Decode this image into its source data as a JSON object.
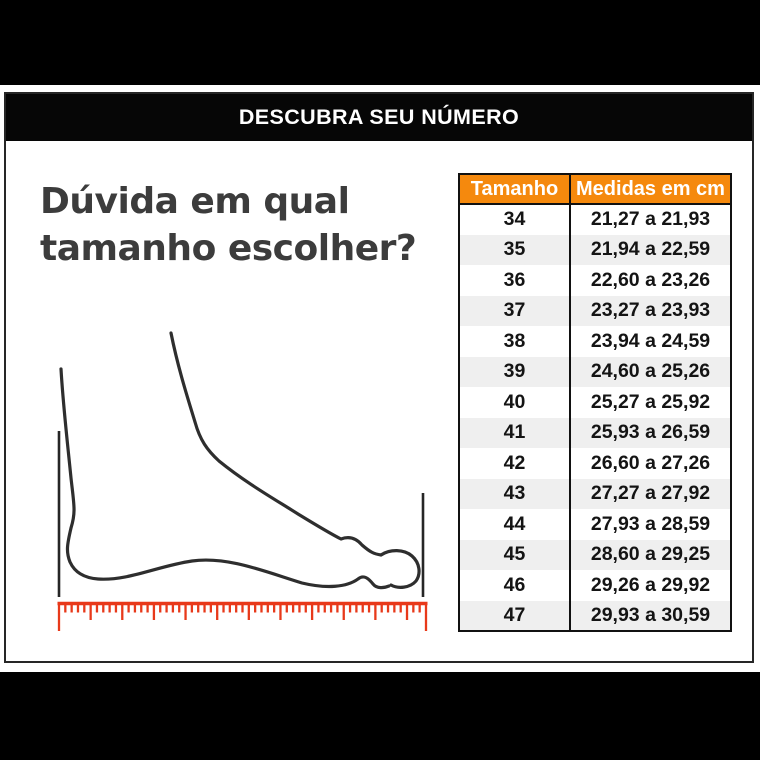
{
  "banner": {
    "title": "DESCUBRA SEU NÚMERO"
  },
  "question": {
    "line1": "Dúvida em qual",
    "line2": "tamanho escolher?"
  },
  "size_table": {
    "columns": [
      "Tamanho",
      "Medidas em cm"
    ],
    "rows": [
      [
        "34",
        "21,27 a 21,93"
      ],
      [
        "35",
        "21,94 a 22,59"
      ],
      [
        "36",
        "22,60 a 23,26"
      ],
      [
        "37",
        "23,27 a 23,93"
      ],
      [
        "38",
        "23,94 a 24,59"
      ],
      [
        "39",
        "24,60 a 25,26"
      ],
      [
        "40",
        "25,27 a 25,92"
      ],
      [
        "41",
        "25,93 a 26,59"
      ],
      [
        "42",
        "26,60 a 27,26"
      ],
      [
        "43",
        "27,27 a 27,92"
      ],
      [
        "44",
        "27,93 a 28,59"
      ],
      [
        "45",
        "28,60 a 29,25"
      ],
      [
        "46",
        "29,26 a 29,92"
      ],
      [
        "47",
        "29,93 a 30,59"
      ]
    ]
  },
  "colors": {
    "table_header_bg": "#F5890D",
    "table_alt_row": "#EFEFEF",
    "ruler_red": "#E8391A",
    "banner_bg": "#060606",
    "heading_text": "#3C3C3C",
    "outer_band": "#000000"
  }
}
